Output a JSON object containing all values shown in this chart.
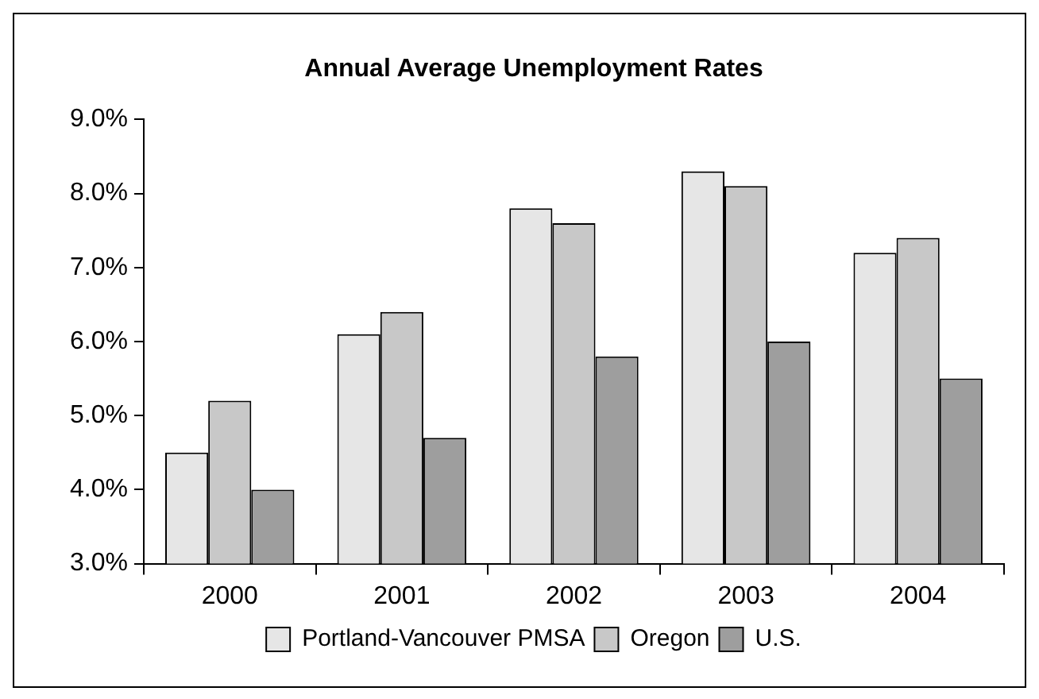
{
  "chart_data": {
    "type": "bar",
    "title": "Annual Average Unemployment Rates",
    "categories": [
      "2000",
      "2001",
      "2002",
      "2003",
      "2004"
    ],
    "series": [
      {
        "name": "Portland-Vancouver PMSA",
        "color": "#e6e6e6",
        "values": [
          4.5,
          6.1,
          7.8,
          8.3,
          7.2
        ]
      },
      {
        "name": "Oregon",
        "color": "#c8c8c8",
        "values": [
          5.2,
          6.4,
          7.6,
          8.1,
          7.4
        ]
      },
      {
        "name": "U.S.",
        "color": "#9e9e9e",
        "values": [
          4.0,
          4.7,
          5.8,
          6.0,
          5.5
        ]
      }
    ],
    "ylim": [
      3,
      9
    ],
    "yticks": [
      {
        "value": 3,
        "label": "3.0%"
      },
      {
        "value": 4,
        "label": "4.0%"
      },
      {
        "value": 5,
        "label": "5.0%"
      },
      {
        "value": 6,
        "label": "6.0%"
      },
      {
        "value": 7,
        "label": "7.0%"
      },
      {
        "value": 8,
        "label": "8.0%"
      },
      {
        "value": 9,
        "label": "9.0%"
      }
    ],
    "grid": false,
    "legend": "bottom"
  }
}
